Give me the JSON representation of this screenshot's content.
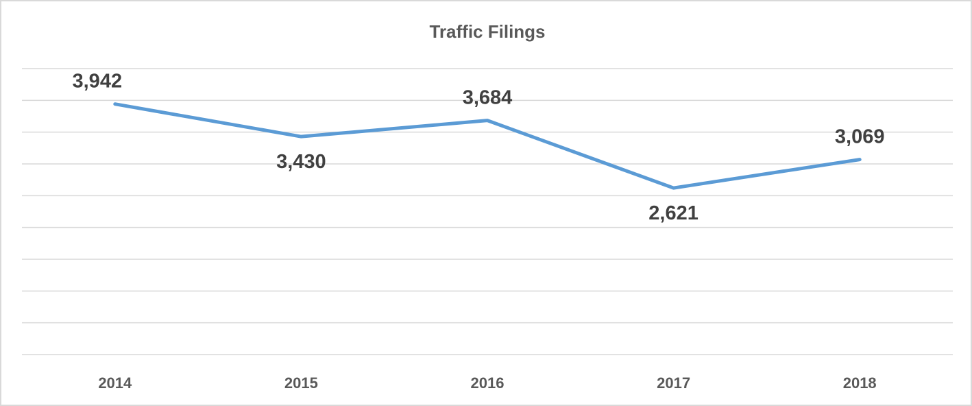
{
  "chart_data": {
    "type": "line",
    "title": "Traffic Filings",
    "categories": [
      "2014",
      "2015",
      "2016",
      "2017",
      "2018"
    ],
    "series": [
      {
        "name": "Traffic Filings",
        "color": "#5b9bd5",
        "values": [
          3942,
          3430,
          3684,
          2621,
          3069
        ],
        "value_labels": [
          "3,942",
          "3,430",
          "3,684",
          "2,621",
          "3,069"
        ]
      }
    ],
    "ylim": [
      0,
      4500
    ],
    "yticks": [
      0,
      500,
      1000,
      1500,
      2000,
      2500,
      3000,
      3500,
      4000,
      4500
    ],
    "grid": true
  }
}
